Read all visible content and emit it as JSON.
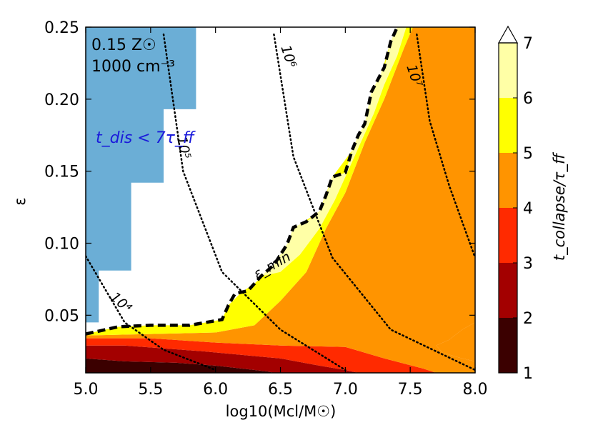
{
  "chart_data": {
    "type": "contourf",
    "xlabel": "log10(Mcl/M☉)",
    "ylabel": "ε",
    "xlim": [
      5.0,
      8.0
    ],
    "ylim": [
      0.01,
      0.25
    ],
    "xticks": [
      "5.0",
      "5.5",
      "6.0",
      "6.5",
      "7.0",
      "7.5",
      "8.0"
    ],
    "xtick_values": [
      5.0,
      5.5,
      6.0,
      6.5,
      7.0,
      7.5,
      8.0
    ],
    "yticks": [
      "0.05",
      "0.10",
      "0.15",
      "0.20",
      "0.25"
    ],
    "ytick_values": [
      0.05,
      0.1,
      0.15,
      0.2,
      0.25
    ],
    "annotation": {
      "metallicity": "0.15 Z☉",
      "density": "1000 cm⁻³",
      "dissolution_label": "t_dis < 7τ_ff",
      "emin_label": "ε_min"
    },
    "colorbar": {
      "label": "t_collapse/τ_ff",
      "ticks": [
        "1",
        "2",
        "3",
        "4",
        "5",
        "6",
        "7"
      ],
      "levels": [
        {
          "from": 1,
          "to": 2,
          "color": "#3b0000"
        },
        {
          "from": 2,
          "to": 3,
          "color": "#a30000"
        },
        {
          "from": 3,
          "to": 4,
          "color": "#ff2a00"
        },
        {
          "from": 4,
          "to": 5,
          "color": "#ff9400"
        },
        {
          "from": 5,
          "to": 6,
          "color": "#ffff00"
        },
        {
          "from": 6,
          "to": 7,
          "color": "#ffffa6"
        },
        {
          "from": 7,
          "to": "max",
          "color": "#ffffff"
        }
      ],
      "extend": "max"
    },
    "mass_contours": [
      {
        "label": "10⁴",
        "points": [
          [
            5.0,
            0.091
          ],
          [
            5.3,
            0.045
          ],
          [
            5.6,
            0.026
          ],
          [
            6.0,
            0.012
          ]
        ]
      },
      {
        "label": "10⁵",
        "points": [
          [
            5.6,
            0.245
          ],
          [
            5.75,
            0.15
          ],
          [
            6.05,
            0.08
          ],
          [
            6.5,
            0.04
          ],
          [
            7.0,
            0.012
          ]
        ]
      },
      {
        "label": "10⁶",
        "points": [
          [
            6.45,
            0.245
          ],
          [
            6.6,
            0.16
          ],
          [
            6.9,
            0.09
          ],
          [
            7.35,
            0.04
          ],
          [
            8.0,
            0.012
          ]
        ]
      },
      {
        "label": "10⁷",
        "points": [
          [
            7.55,
            0.245
          ],
          [
            7.65,
            0.185
          ],
          [
            7.8,
            0.14
          ],
          [
            8.0,
            0.09
          ]
        ]
      }
    ],
    "emin_boundary": [
      [
        5.0,
        0.037
      ],
      [
        5.25,
        0.042
      ],
      [
        5.5,
        0.043
      ],
      [
        5.8,
        0.043
      ],
      [
        6.05,
        0.047
      ],
      [
        6.1,
        0.057
      ],
      [
        6.15,
        0.065
      ],
      [
        6.25,
        0.067
      ],
      [
        6.35,
        0.077
      ],
      [
        6.45,
        0.085
      ],
      [
        6.55,
        0.099
      ],
      [
        6.6,
        0.111
      ],
      [
        6.7,
        0.115
      ],
      [
        6.8,
        0.122
      ],
      [
        6.85,
        0.133
      ],
      [
        6.9,
        0.146
      ],
      [
        7.0,
        0.149
      ],
      [
        7.05,
        0.164
      ],
      [
        7.1,
        0.175
      ],
      [
        7.15,
        0.183
      ],
      [
        7.2,
        0.205
      ],
      [
        7.3,
        0.222
      ],
      [
        7.35,
        0.24
      ],
      [
        7.4,
        0.25
      ]
    ],
    "dissolution_region": [
      [
        5.0,
        0.045
      ],
      [
        5.1,
        0.045
      ],
      [
        5.1,
        0.081
      ],
      [
        5.35,
        0.081
      ],
      [
        5.35,
        0.142
      ],
      [
        5.6,
        0.142
      ],
      [
        5.6,
        0.193
      ],
      [
        5.85,
        0.193
      ],
      [
        5.85,
        0.25
      ],
      [
        5.0,
        0.25
      ]
    ],
    "filled_regions": [
      {
        "level": "1-2",
        "points": [
          [
            5.0,
            0.01
          ],
          [
            5.0,
            0.02
          ],
          [
            5.3,
            0.018
          ],
          [
            5.7,
            0.017
          ],
          [
            6.0,
            0.015
          ],
          [
            6.4,
            0.011
          ],
          [
            6.45,
            0.01
          ]
        ]
      },
      {
        "level": "2-3",
        "points": [
          [
            5.0,
            0.02
          ],
          [
            5.0,
            0.029
          ],
          [
            5.3,
            0.029
          ],
          [
            5.6,
            0.027
          ],
          [
            5.9,
            0.025
          ],
          [
            6.5,
            0.02
          ],
          [
            6.8,
            0.015
          ],
          [
            7.0,
            0.012
          ],
          [
            7.1,
            0.01
          ],
          [
            6.45,
            0.01
          ],
          [
            6.4,
            0.011
          ],
          [
            6.0,
            0.015
          ],
          [
            5.7,
            0.017
          ],
          [
            5.3,
            0.018
          ]
        ]
      },
      {
        "level": "3-4",
        "points": [
          [
            5.0,
            0.029
          ],
          [
            5.0,
            0.034
          ],
          [
            5.5,
            0.034
          ],
          [
            6.0,
            0.031
          ],
          [
            6.5,
            0.029
          ],
          [
            7.0,
            0.028
          ],
          [
            7.3,
            0.02
          ],
          [
            7.6,
            0.013
          ],
          [
            7.7,
            0.01
          ],
          [
            7.1,
            0.01
          ],
          [
            7.0,
            0.012
          ],
          [
            6.8,
            0.015
          ],
          [
            6.5,
            0.02
          ],
          [
            5.9,
            0.025
          ],
          [
            5.6,
            0.027
          ],
          [
            5.3,
            0.029
          ]
        ]
      },
      {
        "level": "4-5",
        "points": [
          [
            5.0,
            0.034
          ],
          [
            5.0,
            0.036
          ],
          [
            5.5,
            0.037
          ],
          [
            6.0,
            0.038
          ],
          [
            6.3,
            0.043
          ],
          [
            6.5,
            0.06
          ],
          [
            6.7,
            0.08
          ],
          [
            6.85,
            0.11
          ],
          [
            7.0,
            0.135
          ],
          [
            7.15,
            0.17
          ],
          [
            7.3,
            0.2
          ],
          [
            7.45,
            0.235
          ],
          [
            7.52,
            0.25
          ],
          [
            8.0,
            0.25
          ],
          [
            8.0,
            0.045
          ],
          [
            7.9,
            0.04
          ],
          [
            7.8,
            0.033
          ],
          [
            7.7,
            0.029
          ],
          [
            7.75,
            0.024
          ],
          [
            7.9,
            0.02
          ],
          [
            8.0,
            0.018
          ],
          [
            8.0,
            0.01
          ],
          [
            7.7,
            0.01
          ],
          [
            7.6,
            0.013
          ],
          [
            7.3,
            0.02
          ],
          [
            7.0,
            0.028
          ],
          [
            6.5,
            0.029
          ],
          [
            6.0,
            0.031
          ],
          [
            5.5,
            0.034
          ]
        ]
      },
      {
        "level": "4-5",
        "points": [
          [
            8.0,
            0.018
          ],
          [
            8.0,
            0.045
          ],
          [
            7.9,
            0.04
          ],
          [
            7.8,
            0.033
          ],
          [
            7.7,
            0.029
          ],
          [
            7.75,
            0.024
          ],
          [
            7.9,
            0.02
          ]
        ]
      },
      {
        "level": "5-6",
        "points": [
          [
            5.0,
            0.036
          ],
          [
            5.0,
            0.037
          ],
          [
            5.25,
            0.042
          ],
          [
            5.5,
            0.043
          ],
          [
            5.8,
            0.043
          ],
          [
            6.05,
            0.047
          ],
          [
            6.1,
            0.057
          ],
          [
            6.2,
            0.066
          ],
          [
            6.3,
            0.072
          ],
          [
            6.45,
            0.085
          ],
          [
            6.55,
            0.099
          ],
          [
            6.65,
            0.113
          ],
          [
            6.8,
            0.122
          ],
          [
            6.9,
            0.146
          ],
          [
            7.05,
            0.164
          ],
          [
            7.15,
            0.183
          ],
          [
            7.25,
            0.21
          ],
          [
            7.35,
            0.24
          ],
          [
            7.4,
            0.25
          ],
          [
            7.52,
            0.25
          ],
          [
            7.45,
            0.235
          ],
          [
            7.3,
            0.2
          ],
          [
            7.15,
            0.17
          ],
          [
            7.0,
            0.135
          ],
          [
            6.85,
            0.11
          ],
          [
            6.7,
            0.08
          ],
          [
            6.5,
            0.06
          ],
          [
            6.3,
            0.043
          ],
          [
            6.0,
            0.038
          ],
          [
            5.5,
            0.037
          ]
        ]
      },
      {
        "level": "6-7",
        "points": [
          [
            6.35,
            0.077
          ],
          [
            6.45,
            0.085
          ],
          [
            6.55,
            0.099
          ],
          [
            6.6,
            0.111
          ],
          [
            6.7,
            0.115
          ],
          [
            6.8,
            0.122
          ],
          [
            6.85,
            0.133
          ],
          [
            6.9,
            0.146
          ],
          [
            7.0,
            0.149
          ],
          [
            7.05,
            0.164
          ],
          [
            7.1,
            0.175
          ],
          [
            7.15,
            0.183
          ],
          [
            7.2,
            0.205
          ],
          [
            7.3,
            0.222
          ],
          [
            7.35,
            0.24
          ],
          [
            7.4,
            0.25
          ],
          [
            7.47,
            0.25
          ],
          [
            7.4,
            0.23
          ],
          [
            7.3,
            0.21
          ],
          [
            7.22,
            0.19
          ],
          [
            7.12,
            0.17
          ],
          [
            7.02,
            0.15
          ],
          [
            6.92,
            0.13
          ],
          [
            6.8,
            0.11
          ],
          [
            6.65,
            0.092
          ],
          [
            6.5,
            0.08
          ]
        ]
      }
    ]
  }
}
